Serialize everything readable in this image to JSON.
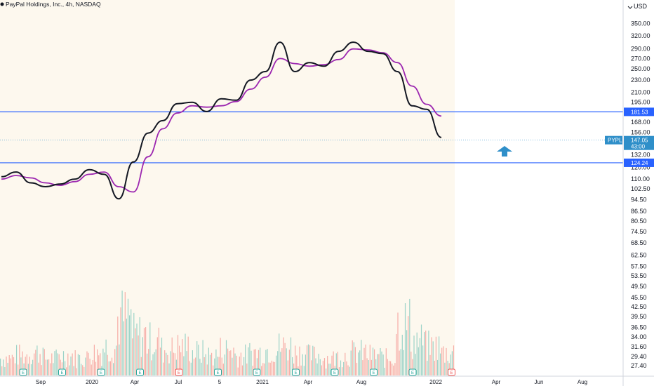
{
  "header": {
    "title": "PayPal Holdings, Inc., 4h, NASDAQ",
    "currency": "USD"
  },
  "colors": {
    "price_line": "#131722",
    "ma_line": "#9c27b0",
    "hline": "#2962ff",
    "arrow": "#2f8fc9",
    "up": "#26a69a",
    "down": "#ef5350",
    "shade": "#fdf8ee",
    "price_tag": "#2f8fc9",
    "ticker_tag": "#2f8fc9"
  },
  "chart_data": {
    "type": "line",
    "y_scale": "log",
    "ylim": [
      25.5,
      380
    ],
    "y_ticks": [
      "350.00",
      "320.00",
      "290.00",
      "270.00",
      "250.00",
      "230.00",
      "210.00",
      "195.00",
      "168.00",
      "156.00",
      "132.00",
      "120.00",
      "110.00",
      "102.50",
      "94.50",
      "86.50",
      "80.50",
      "74.50",
      "68.50",
      "62.50",
      "57.50",
      "53.50",
      "49.50",
      "45.50",
      "42.50",
      "39.50",
      "36.50",
      "34.00",
      "31.60",
      "29.40",
      "27.40"
    ],
    "x_ticks": [
      "Sep",
      "2020",
      "Apr",
      "Jul",
      "5",
      "2021",
      "Apr",
      "Aug",
      "2022",
      "Apr",
      "Jun",
      "Aug"
    ],
    "price_series": {
      "name": "Close",
      "x": [
        "2019-07",
        "2019-08",
        "2019-09",
        "2019-10",
        "2019-11",
        "2019-12",
        "2020-01",
        "2020-02",
        "2020-03",
        "2020-04",
        "2020-05",
        "2020-06",
        "2020-07",
        "2020-08",
        "2020-09",
        "2020-10",
        "2020-11",
        "2020-12",
        "2021-01",
        "2021-02",
        "2021-03",
        "2021-04",
        "2021-05",
        "2021-06",
        "2021-07",
        "2021-08",
        "2021-09",
        "2021-10",
        "2021-11",
        "2021-12",
        "2022-01"
      ],
      "values": [
        112,
        116,
        107,
        104,
        106,
        110,
        118,
        114,
        95,
        125,
        155,
        170,
        193,
        195,
        182,
        200,
        198,
        230,
        245,
        305,
        245,
        262,
        255,
        285,
        305,
        285,
        280,
        245,
        190,
        185,
        150
      ]
    },
    "ma_series": {
      "name": "MA",
      "values": [
        110,
        113,
        111,
        107,
        105,
        108,
        114,
        116,
        104,
        100,
        130,
        160,
        180,
        190,
        188,
        190,
        196,
        215,
        235,
        270,
        260,
        255,
        258,
        268,
        290,
        288,
        282,
        262,
        220,
        192,
        176
      ]
    },
    "volume": {
      "values": [
        0.3,
        0.35,
        0.4,
        0.3,
        0.35,
        0.3,
        0.4,
        0.5,
        1.0,
        0.7,
        0.6,
        0.45,
        0.5,
        0.4,
        0.35,
        0.45,
        0.35,
        0.4,
        0.45,
        0.5,
        0.4,
        0.35,
        0.3,
        0.35,
        0.4,
        0.35,
        0.3,
        0.9,
        0.6,
        0.5,
        0.4
      ]
    },
    "horizontal_lines": [
      {
        "value": 181.53,
        "label": "181.53"
      },
      {
        "value": 124.24,
        "label": "124.24"
      }
    ],
    "last_price": {
      "ticker": "PYPL",
      "value": "147.05",
      "countdown": "43:00",
      "numeric": 147.05
    },
    "earnings_markers": [
      {
        "label": "E",
        "status": "past"
      },
      {
        "label": "E",
        "status": "past"
      },
      {
        "label": "E",
        "status": "past"
      },
      {
        "label": "E",
        "status": "past"
      },
      {
        "label": "E",
        "status": "upcoming"
      },
      {
        "label": "E",
        "status": "past"
      },
      {
        "label": "E",
        "status": "past"
      },
      {
        "label": "E",
        "status": "past"
      },
      {
        "label": "E",
        "status": "past"
      },
      {
        "label": "E",
        "status": "past"
      },
      {
        "label": "E",
        "status": "past"
      },
      {
        "label": "E",
        "status": "upcoming"
      }
    ],
    "annotations": [
      {
        "type": "arrow-up"
      }
    ]
  }
}
